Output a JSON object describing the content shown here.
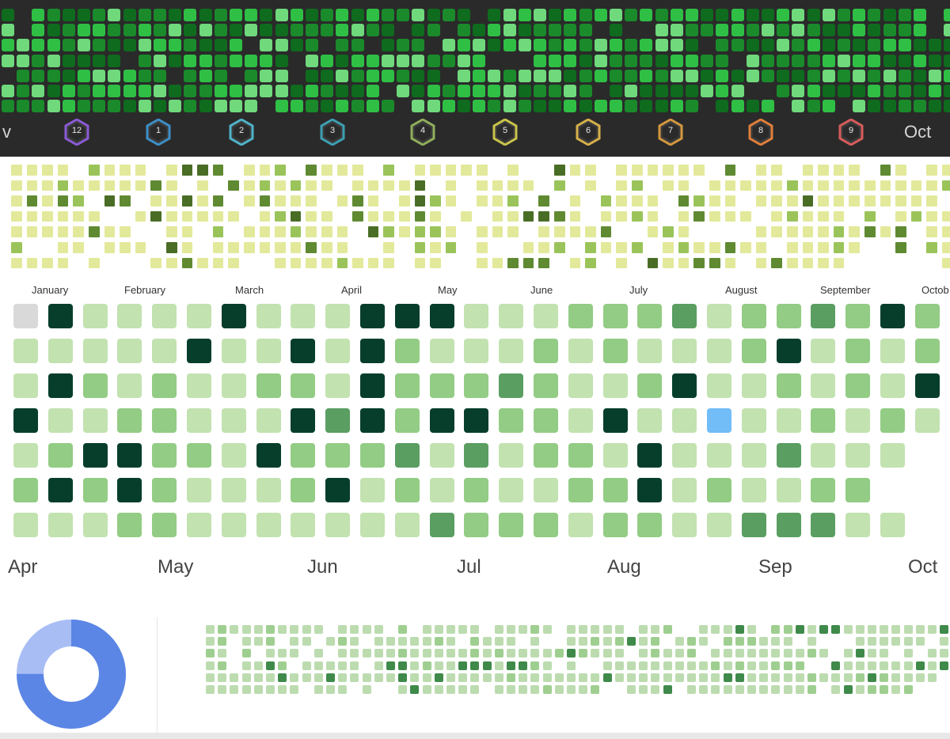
{
  "calendar_dark": {
    "month_labels": [
      "v",
      "Oct"
    ],
    "badge_labels": [
      "12",
      "1",
      "2",
      "3",
      "4",
      "5",
      "6",
      "7",
      "8",
      "9"
    ],
    "colors": {
      "bg": "#2a2a2a",
      "levels": [
        "#0f6b1e",
        "#1a8a2b",
        "#2fbf45",
        "#6fd97c"
      ]
    }
  },
  "calendar_yellow": {
    "month_labels": [
      "January",
      "February",
      "March",
      "April",
      "May",
      "June",
      "July",
      "August",
      "September",
      "Octob"
    ],
    "colors": {
      "levels": [
        "#e3e99a",
        "#9ac45a",
        "#5f8a32",
        "#4a6d26"
      ]
    }
  },
  "calendar_main": {
    "month_labels": [
      "Apr",
      "May",
      "Jun",
      "Jul",
      "Aug",
      "Sep",
      "Oct"
    ],
    "colors": {
      "empty": "#d9d9d9",
      "highlight": "#72bcf7",
      "levels": [
        "#c2e2b0",
        "#93cc84",
        "#5a9e62",
        "#063e2b"
      ]
    }
  },
  "calendar_small": {
    "colors": {
      "levels": [
        "#bcdcb0",
        "#9fcf90",
        "#3f8a4a",
        "#222222"
      ]
    }
  },
  "donut": {
    "colors": {
      "primary": "#5b86e5",
      "secondary": "#a7bdf4"
    },
    "primary_fraction": 0.75
  }
}
